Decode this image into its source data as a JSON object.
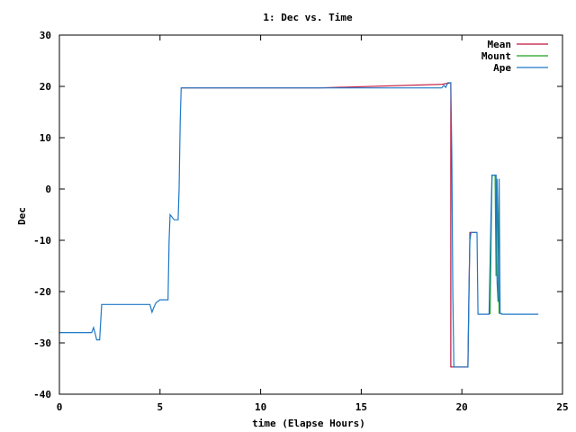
{
  "chart_data": {
    "type": "line",
    "title": "1: Dec vs. Time",
    "xlabel": "time (Elapse Hours)",
    "ylabel": "Dec",
    "xlim": [
      0,
      25
    ],
    "ylim": [
      -40,
      30
    ],
    "x_ticks": [
      0,
      5,
      10,
      15,
      20,
      25
    ],
    "y_ticks": [
      -40,
      -30,
      -20,
      -10,
      0,
      10,
      20,
      30
    ],
    "grid": false,
    "legend_position": "top-right",
    "series": [
      {
        "name": "Mean",
        "color": "#c0143c",
        "points": [
          [
            6.05,
            19.7
          ],
          [
            12.9,
            19.7
          ],
          [
            19.0,
            20.4
          ],
          [
            19.45,
            20.7
          ],
          [
            19.45,
            -34.7
          ],
          [
            20.3,
            -34.7
          ],
          [
            20.4,
            -8.5
          ],
          [
            20.75,
            -8.5
          ]
        ]
      },
      {
        "name": "Mount",
        "color": "#1ea01e",
        "points": [
          [
            21.4,
            -24.4
          ],
          [
            21.5,
            2.7
          ],
          [
            21.65,
            2.7
          ],
          [
            21.7,
            -17.0
          ],
          [
            21.75,
            2.0
          ],
          [
            21.85,
            -24.2
          ],
          [
            22.0,
            -24.4
          ]
        ]
      },
      {
        "name": "Ape",
        "color": "#1e78c8",
        "points": [
          [
            0,
            -28.0
          ],
          [
            1.6,
            -28.0
          ],
          [
            1.7,
            -27.0
          ],
          [
            1.8,
            -28.5
          ],
          [
            1.85,
            -29.4
          ],
          [
            2.0,
            -29.4
          ],
          [
            2.05,
            -26.0
          ],
          [
            2.1,
            -22.5
          ],
          [
            3.0,
            -22.5
          ],
          [
            4.5,
            -22.5
          ],
          [
            4.6,
            -24.0
          ],
          [
            4.7,
            -23.0
          ],
          [
            4.8,
            -22.2
          ],
          [
            5.0,
            -21.6
          ],
          [
            5.4,
            -21.6
          ],
          [
            5.45,
            -10.0
          ],
          [
            5.5,
            -5.0
          ],
          [
            5.6,
            -5.5
          ],
          [
            5.7,
            -6.0
          ],
          [
            5.9,
            -6.0
          ],
          [
            5.95,
            0.0
          ],
          [
            6.0,
            13.0
          ],
          [
            6.05,
            19.7
          ],
          [
            13.0,
            19.7
          ],
          [
            19.0,
            19.7
          ],
          [
            19.1,
            20.2
          ],
          [
            19.2,
            19.8
          ],
          [
            19.3,
            20.7
          ],
          [
            19.45,
            20.7
          ],
          [
            19.5,
            7.0
          ],
          [
            19.55,
            -20.0
          ],
          [
            19.6,
            -34.7
          ],
          [
            20.3,
            -34.7
          ],
          [
            20.35,
            -20.0
          ],
          [
            20.4,
            -10.0
          ],
          [
            20.45,
            -8.5
          ],
          [
            20.75,
            -8.5
          ],
          [
            20.8,
            -24.4
          ],
          [
            21.35,
            -24.4
          ],
          [
            21.45,
            -5.0
          ],
          [
            21.5,
            2.7
          ],
          [
            21.7,
            2.7
          ],
          [
            21.75,
            -18.0
          ],
          [
            21.8,
            -22.0
          ],
          [
            21.85,
            2.0
          ],
          [
            21.9,
            -24.2
          ],
          [
            22.0,
            -24.4
          ],
          [
            23.8,
            -24.4
          ]
        ]
      }
    ]
  }
}
